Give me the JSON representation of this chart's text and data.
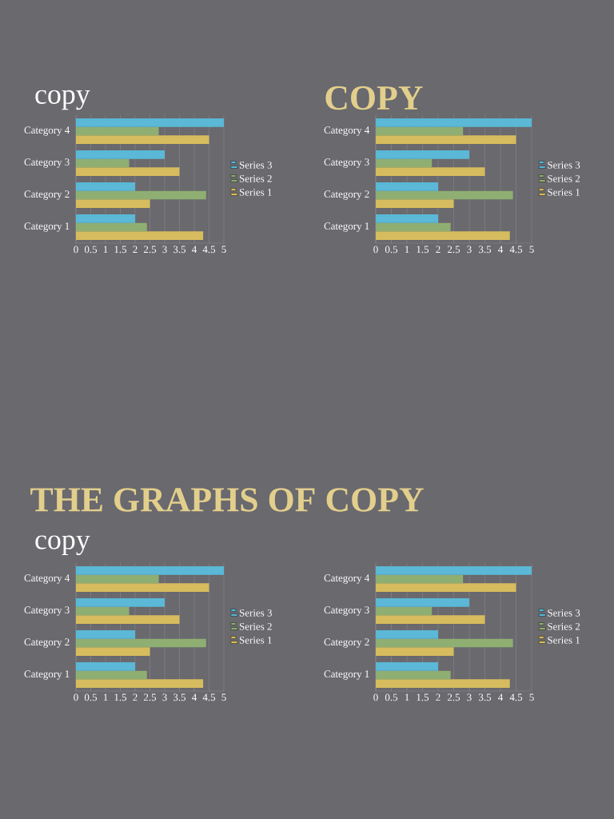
{
  "chart_data": [
    {
      "type": "bar",
      "orientation": "horizontal",
      "title": "copy",
      "categories": [
        "Category 4",
        "Category 3",
        "Category 2",
        "Category 1"
      ],
      "series": [
        {
          "name": "Series 1",
          "color": "#d6bc5e",
          "values": [
            4.5,
            3.5,
            2.5,
            4.3
          ]
        },
        {
          "name": "Series 2",
          "color": "#8fae72",
          "values": [
            2.8,
            1.8,
            4.4,
            2.4
          ]
        },
        {
          "name": "Series 3",
          "color": "#5bb8d6",
          "values": [
            5,
            3,
            2,
            2
          ]
        }
      ],
      "xlim": [
        0,
        5
      ],
      "xticks": [
        0,
        0.5,
        1,
        1.5,
        2,
        2.5,
        3,
        3.5,
        4,
        4.5,
        5
      ],
      "grid": "x",
      "legend": "right"
    },
    {
      "type": "bar",
      "orientation": "horizontal",
      "title": "COPY",
      "categories": [
        "Category 4",
        "Category 3",
        "Category 2",
        "Category 1"
      ],
      "series": [
        {
          "name": "Series 1",
          "color": "#d6bc5e",
          "values": [
            4.5,
            3.5,
            2.5,
            4.3
          ]
        },
        {
          "name": "Series 2",
          "color": "#8fae72",
          "values": [
            2.8,
            1.8,
            4.4,
            2.4
          ]
        },
        {
          "name": "Series 3",
          "color": "#5bb8d6",
          "values": [
            5,
            3,
            2,
            2
          ]
        }
      ],
      "xlim": [
        0,
        5
      ],
      "xticks": [
        0,
        0.5,
        1,
        1.5,
        2,
        2.5,
        3,
        3.5,
        4,
        4.5,
        5
      ],
      "grid": "x",
      "legend": "right"
    },
    {
      "type": "bar",
      "orientation": "horizontal",
      "title": "THE GRAPHS OF COPY",
      "subtitle": "copy",
      "categories": [
        "Category 4",
        "Category 3",
        "Category 2",
        "Category 1"
      ],
      "series": [
        {
          "name": "Series 1",
          "color": "#d6bc5e",
          "values": [
            4.5,
            3.5,
            2.5,
            4.3
          ]
        },
        {
          "name": "Series 2",
          "color": "#8fae72",
          "values": [
            2.8,
            1.8,
            4.4,
            2.4
          ]
        },
        {
          "name": "Series 3",
          "color": "#5bb8d6",
          "values": [
            5,
            3,
            2,
            2
          ]
        }
      ],
      "xlim": [
        0,
        5
      ],
      "xticks": [
        0,
        0.5,
        1,
        1.5,
        2,
        2.5,
        3,
        3.5,
        4,
        4.5,
        5
      ],
      "grid": "x",
      "legend": "right"
    },
    {
      "type": "bar",
      "orientation": "horizontal",
      "categories": [
        "Category 4",
        "Category 3",
        "Category 2",
        "Category 1"
      ],
      "series": [
        {
          "name": "Series 1",
          "color": "#d6bc5e",
          "values": [
            4.5,
            3.5,
            2.5,
            4.3
          ]
        },
        {
          "name": "Series 2",
          "color": "#8fae72",
          "values": [
            2.8,
            1.8,
            4.4,
            2.4
          ]
        },
        {
          "name": "Series 3",
          "color": "#5bb8d6",
          "values": [
            5,
            3,
            2,
            2
          ]
        }
      ],
      "xlim": [
        0,
        5
      ],
      "xticks": [
        0,
        0.5,
        1,
        1.5,
        2,
        2.5,
        3,
        3.5,
        4,
        4.5,
        5
      ],
      "grid": "x",
      "legend": "right"
    }
  ]
}
